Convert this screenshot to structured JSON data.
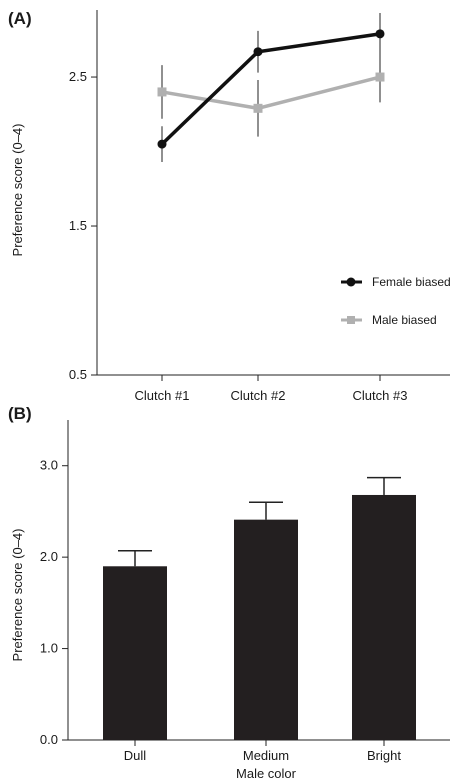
{
  "chart_data": [
    {
      "panel": "(A)",
      "type": "line",
      "ylabel": "Preference score (0–4)",
      "xlabel": "",
      "categories": [
        "Clutch #1",
        "Clutch #2",
        "Clutch #3"
      ],
      "ylim": [
        0.5,
        2.95
      ],
      "yticks": [
        "0.5",
        "1.5",
        "2.5"
      ],
      "ytick_values": [
        0.5,
        1.5,
        2.5
      ],
      "series": [
        {
          "name": "Female biased",
          "color": "#111111",
          "marker": "circle",
          "values": [
            2.05,
            2.67,
            2.79
          ],
          "errors": [
            0.12,
            0.14,
            0.14
          ]
        },
        {
          "name": "Male biased",
          "color": "#b0b0b0",
          "marker": "square",
          "values": [
            2.4,
            2.29,
            2.5
          ],
          "errors": [
            0.18,
            0.19,
            0.17
          ]
        }
      ],
      "legend": "right"
    },
    {
      "panel": "(B)",
      "type": "bar",
      "ylabel": "Preference score (0–4)",
      "xlabel": "Male color",
      "categories": [
        "Dull",
        "Medium",
        "Bright"
      ],
      "values": [
        1.9,
        2.41,
        2.68
      ],
      "errors": [
        0.17,
        0.19,
        0.19
      ],
      "ylim": [
        0.0,
        3.5
      ],
      "yticks": [
        "0.0",
        "1.0",
        "2.0",
        "3.0"
      ],
      "ytick_values": [
        0,
        1,
        2,
        3
      ],
      "bar_color": "#231f20"
    }
  ]
}
